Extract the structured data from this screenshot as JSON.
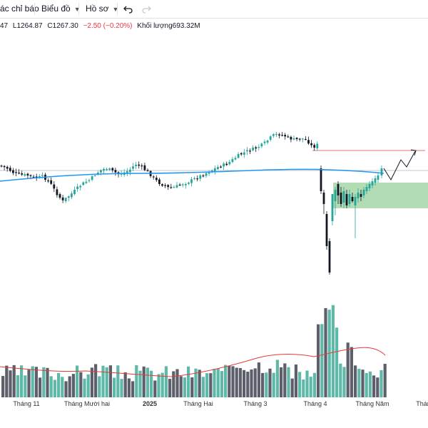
{
  "toolbar": {
    "indicators_label": "ác chỉ báo",
    "chart_label": "Biểu đồ",
    "profile_label": "Hồ sơ"
  },
  "legend": {
    "open_fragment": "47",
    "low": "L1264.87",
    "close": "C1267.30",
    "change": "−2.50 (−0.20%)",
    "volume_label": "Khối lượng",
    "volume_value": "693.32M"
  },
  "time_axis": {
    "labels": [
      "Tháng 11",
      "Tháng Mười hai",
      "2025",
      "Tháng Hai",
      "Tháng 3",
      "Tháng 4",
      "Tháng Năm",
      "Tháng"
    ]
  },
  "colors": {
    "up": "#26a69a",
    "up_volume": "#5fb9a8",
    "down": "#131722",
    "down_volume": "#5d606b",
    "moving_average": "#2196f3",
    "volume_ma": "#e53935",
    "zone": "#a5d6a7",
    "resistance_line": "#e57373"
  },
  "chart_data": {
    "type": "candlestick",
    "price_note": "candles with volume sub-panel, moving average line, highlighted demand zone and projected path drawing"
  }
}
